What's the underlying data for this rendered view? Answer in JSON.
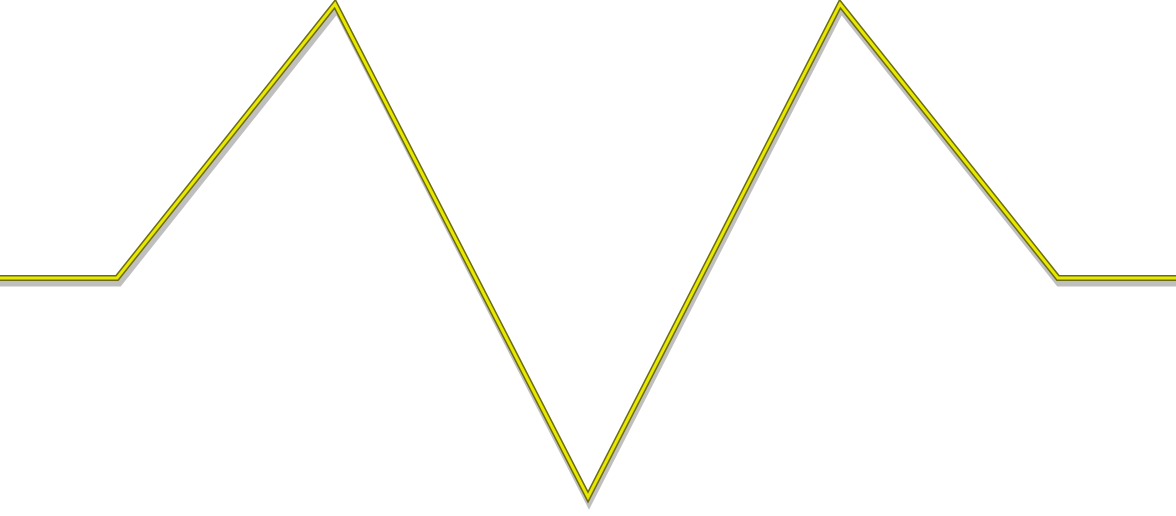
{
  "figure": {
    "shape": "zigzag-waveform",
    "background_color": "#ffffff",
    "stroke_color": "#e8e800",
    "outline_color": "#6b6b10",
    "shadow_color": "#8a8a8a"
  }
}
